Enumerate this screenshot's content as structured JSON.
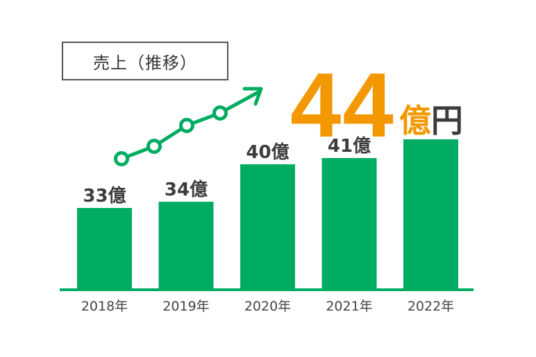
{
  "title": "売上（推移）",
  "headline": {
    "value": "44",
    "unit_main": "億",
    "unit_tail": "円"
  },
  "colors": {
    "bar": "#00ac61",
    "trend": "#00ac61",
    "headline": "#f39800",
    "text": "#333333",
    "baseline": "#00ac61"
  },
  "chart_data": {
    "type": "bar",
    "categories": [
      "2018年",
      "2019年",
      "2020年",
      "2021年",
      "2022年"
    ],
    "values": [
      33,
      34,
      40,
      41,
      44
    ],
    "data_labels": [
      "33億",
      "34億",
      "40億",
      "41億",
      ""
    ],
    "title": "売上（推移）",
    "xlabel": "",
    "ylabel": "",
    "unit": "億円",
    "grid": false,
    "legend": "none"
  }
}
